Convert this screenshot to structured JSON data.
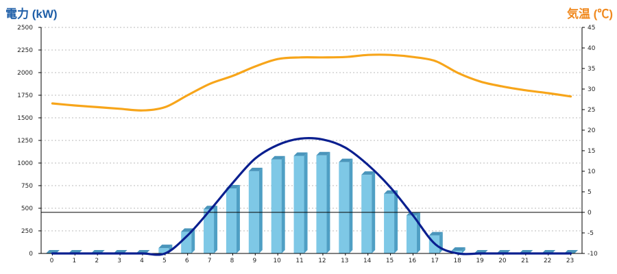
{
  "chart_data": {
    "type": "bar",
    "title": "",
    "x": [
      "0",
      "1",
      "2",
      "3",
      "4",
      "5",
      "6",
      "7",
      "8",
      "9",
      "10",
      "11",
      "12",
      "13",
      "14",
      "15",
      "16",
      "17",
      "18",
      "19",
      "20",
      "21",
      "22",
      "23"
    ],
    "xlabel": "",
    "y_left": {
      "label": "電力 (kW)",
      "ylim": [
        0,
        2500
      ],
      "ticks": [
        0,
        250,
        500,
        750,
        1000,
        1250,
        1500,
        1750,
        2000,
        2250,
        2500
      ]
    },
    "y_right": {
      "label": "気温 (℃)",
      "ylim": [
        -10,
        45
      ],
      "ticks": [
        -10,
        -5,
        0,
        5,
        10,
        15,
        20,
        25,
        30,
        35,
        40,
        45
      ]
    },
    "series": [
      {
        "type": "bar",
        "axis": "left",
        "color": "#7ec8e6",
        "values": [
          0,
          0,
          0,
          0,
          0,
          60,
          240,
          490,
          720,
          910,
          1040,
          1080,
          1085,
          1010,
          870,
          660,
          420,
          200,
          30,
          0,
          0,
          0,
          0,
          0
        ]
      },
      {
        "type": "line",
        "axis": "left",
        "color": "#0a1f8f",
        "values": [
          0,
          0,
          0,
          0,
          0,
          0,
          200,
          480,
          780,
          1050,
          1200,
          1270,
          1260,
          1170,
          980,
          730,
          420,
          100,
          0,
          0,
          0,
          0,
          0,
          0
        ]
      },
      {
        "type": "line",
        "axis": "right",
        "color": "#f7a51a",
        "values": [
          26.5,
          26,
          25.6,
          25.2,
          24.8,
          25.6,
          28.5,
          31.3,
          33.2,
          35.5,
          37.3,
          37.7,
          37.7,
          37.8,
          38.3,
          38.3,
          37.8,
          36.8,
          33.9,
          31.8,
          30.6,
          29.7,
          29,
          28.2
        ]
      }
    ],
    "reference_line": {
      "axis": "right",
      "value": 0
    },
    "grid": true,
    "legend": "none"
  }
}
